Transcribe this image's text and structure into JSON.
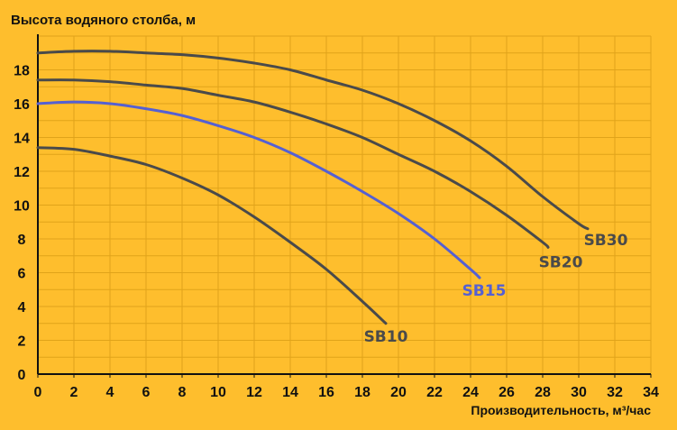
{
  "colors": {
    "background": "#FEBE2D",
    "grid": "#E0A31A",
    "axis": "#111111",
    "curve_dark": "#4A4A4A",
    "curve_blue": "#5560D2"
  },
  "chart_data": {
    "type": "line",
    "title": "",
    "ylabel": "Высота водяного столба, м",
    "xlabel": "Производительность, м³/час",
    "xlim": [
      0,
      34
    ],
    "ylim": [
      0,
      20
    ],
    "x_ticks": [
      "0",
      "2",
      "4",
      "6",
      "8",
      "10",
      "12",
      "14",
      "16",
      "18",
      "20",
      "22",
      "24",
      "26",
      "28",
      "30",
      "32",
      "34"
    ],
    "y_ticks": [
      "0",
      "2",
      "4",
      "6",
      "8",
      "10",
      "12",
      "14",
      "16",
      "18"
    ],
    "grid": true,
    "series": [
      {
        "name": "SB10",
        "color": "#4A4A4A",
        "x": [
          0,
          2,
          4,
          6,
          8,
          10,
          12,
          14,
          16,
          18,
          19.3
        ],
        "y": [
          13.4,
          13.3,
          12.9,
          12.4,
          11.6,
          10.6,
          9.3,
          7.8,
          6.2,
          4.3,
          3.0
        ]
      },
      {
        "name": "SB15",
        "color": "#5560D2",
        "x": [
          0,
          2,
          4,
          6,
          8,
          10,
          12,
          14,
          16,
          18,
          20,
          22,
          24,
          24.5
        ],
        "y": [
          16.0,
          16.1,
          16.0,
          15.7,
          15.3,
          14.7,
          14.0,
          13.1,
          12.0,
          10.8,
          9.5,
          8.0,
          6.2,
          5.7
        ]
      },
      {
        "name": "SB20",
        "color": "#4A4A4A",
        "x": [
          0,
          2,
          4,
          6,
          8,
          10,
          12,
          14,
          16,
          18,
          20,
          22,
          24,
          26,
          28,
          28.3
        ],
        "y": [
          17.4,
          17.4,
          17.3,
          17.1,
          16.9,
          16.5,
          16.1,
          15.5,
          14.8,
          14.0,
          13.0,
          12.0,
          10.8,
          9.4,
          7.8,
          7.5
        ]
      },
      {
        "name": "SB30",
        "color": "#4A4A4A",
        "x": [
          0,
          2,
          4,
          6,
          8,
          10,
          12,
          14,
          16,
          18,
          20,
          22,
          24,
          26,
          28,
          30,
          30.5
        ],
        "y": [
          19.0,
          19.1,
          19.1,
          19.0,
          18.9,
          18.7,
          18.4,
          18.0,
          17.4,
          16.8,
          16.0,
          15.0,
          13.8,
          12.3,
          10.5,
          8.9,
          8.6
        ]
      }
    ]
  }
}
